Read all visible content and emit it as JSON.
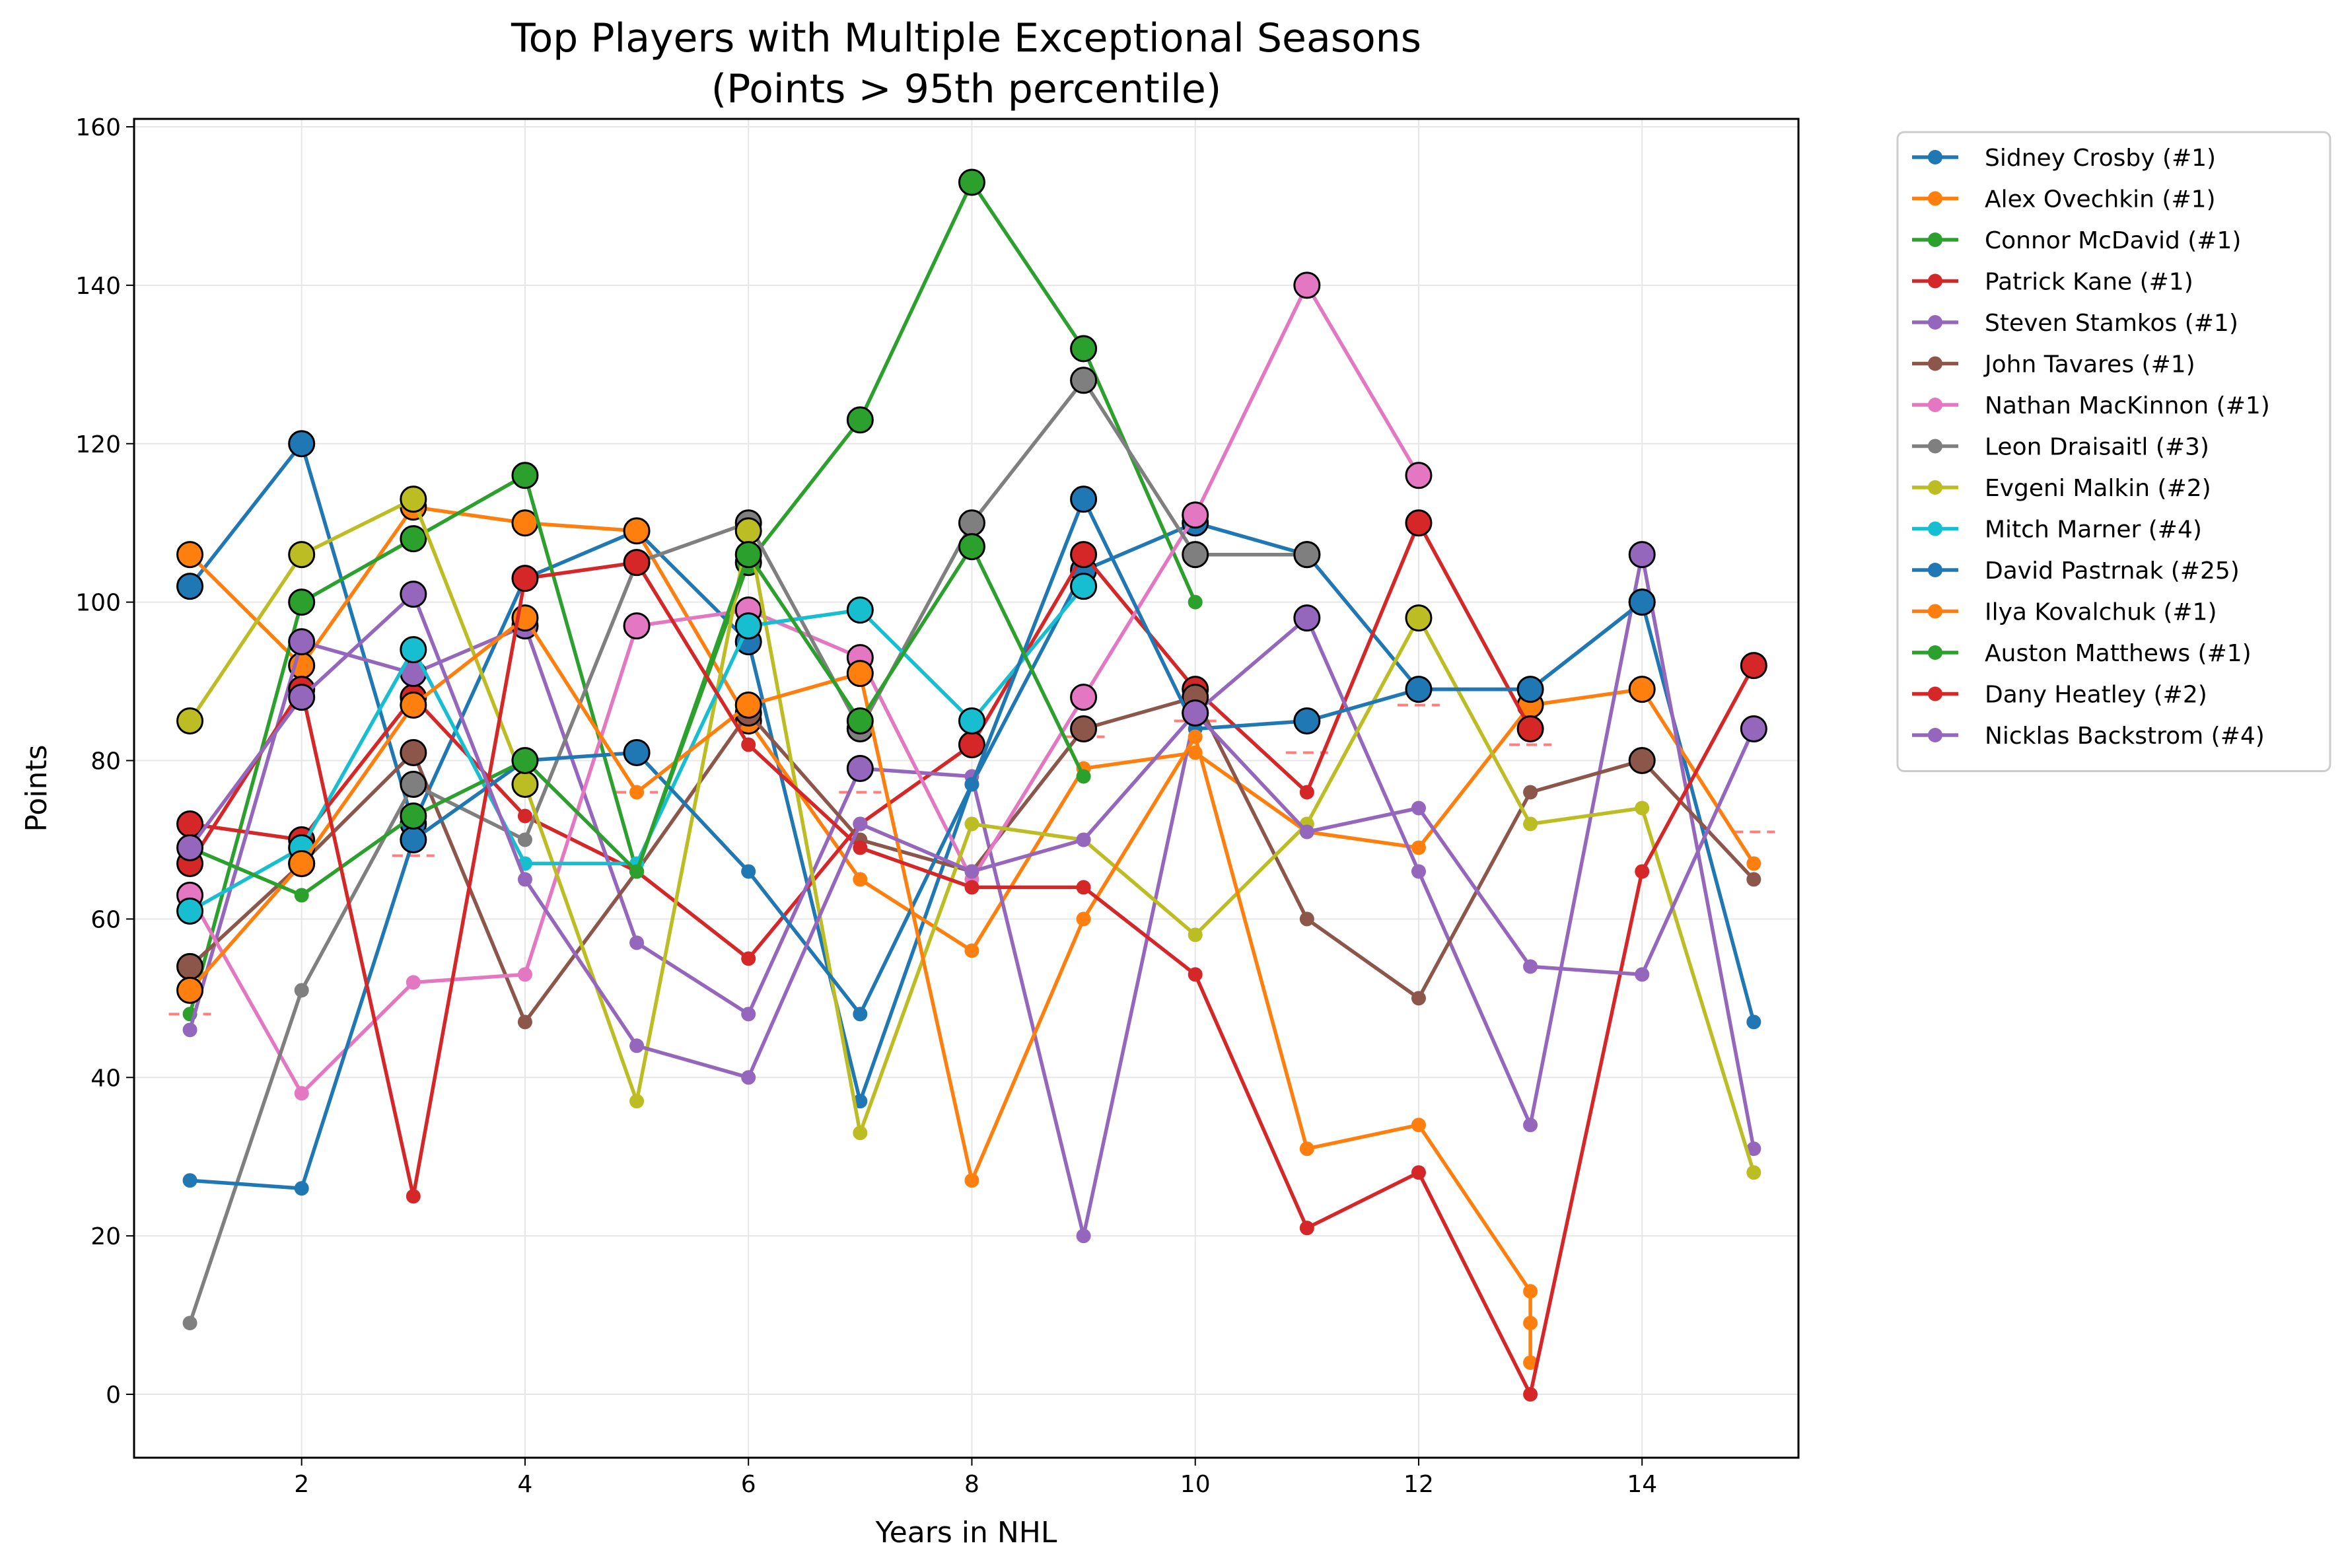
{
  "chart_data": {
    "type": "line",
    "title": "Top Players with Multiple Exceptional Seasons",
    "subtitle": "(Points > 95th percentile)",
    "xlabel": "Years in NHL",
    "ylabel": "Points",
    "xlim": [
      0.5,
      15.4
    ],
    "ylim": [
      -8,
      161
    ],
    "xticks": [
      2,
      4,
      6,
      8,
      10,
      12,
      14
    ],
    "yticks": [
      0,
      20,
      40,
      60,
      80,
      100,
      120,
      140,
      160
    ],
    "grid": true,
    "legend_position": "outside-right",
    "threshold_markers": [
      {
        "x": 1,
        "y": 48
      },
      {
        "x": 3,
        "y": 68
      },
      {
        "x": 5,
        "y": 76
      },
      {
        "x": 7,
        "y": 76
      },
      {
        "x": 9,
        "y": 83
      },
      {
        "x": 10,
        "y": 85
      },
      {
        "x": 11,
        "y": 81
      },
      {
        "x": 12,
        "y": 87
      },
      {
        "x": 13,
        "y": 82
      },
      {
        "x": 15,
        "y": 71
      }
    ],
    "series": [
      {
        "name": "Sidney Crosby (#1)",
        "color": "#1f77b4",
        "x": [
          1,
          2,
          3,
          4,
          5,
          6,
          7,
          8,
          9,
          10,
          11,
          12,
          13,
          14,
          15
        ],
        "y": [
          102,
          120,
          72,
          103,
          109,
          95,
          37,
          77,
          104,
          110,
          106,
          89,
          89,
          100,
          47
        ],
        "exceptional": [
          1,
          1,
          1,
          0,
          0,
          1,
          0,
          0,
          1,
          1,
          1,
          0,
          0,
          1,
          0
        ]
      },
      {
        "name": "Alex Ovechkin (#1)",
        "color": "#ff7f0e",
        "x": [
          1,
          2,
          3,
          4,
          5,
          6,
          7,
          8,
          9,
          10,
          11,
          12,
          13,
          14,
          15
        ],
        "y": [
          106,
          92,
          112,
          110,
          109,
          85,
          65,
          56,
          79,
          81,
          71,
          69,
          87,
          89,
          67
        ],
        "exceptional": [
          1,
          1,
          1,
          1,
          1,
          1,
          0,
          0,
          0,
          0,
          0,
          0,
          1,
          1,
          0
        ]
      },
      {
        "name": "Connor McDavid (#1)",
        "color": "#2ca02c",
        "x": [
          1,
          2,
          3,
          4,
          5,
          6,
          7,
          8,
          9,
          10
        ],
        "y": [
          48,
          100,
          108,
          116,
          66,
          105,
          123,
          153,
          132,
          100
        ],
        "exceptional": [
          0,
          1,
          1,
          1,
          0,
          1,
          1,
          1,
          1,
          0
        ]
      },
      {
        "name": "Patrick Kane (#1)",
        "color": "#d62728",
        "x": [
          1,
          2,
          3,
          4,
          5,
          6,
          7,
          8,
          9,
          10,
          11,
          12,
          13
        ],
        "y": [
          72,
          70,
          88,
          73,
          66,
          55,
          72,
          82,
          106,
          89,
          76,
          110,
          84
        ],
        "exceptional": [
          1,
          1,
          1,
          0,
          0,
          0,
          0,
          1,
          1,
          1,
          0,
          1,
          1
        ]
      },
      {
        "name": "Steven Stamkos (#1)",
        "color": "#9467bd",
        "x": [
          1,
          2,
          3,
          4,
          5,
          6,
          7,
          8,
          9,
          10,
          11,
          12,
          13,
          14,
          15
        ],
        "y": [
          46,
          95,
          91,
          97,
          57,
          48,
          79,
          78,
          20,
          86,
          98,
          66,
          34,
          106,
          31
        ],
        "exceptional": [
          0,
          1,
          1,
          1,
          0,
          0,
          1,
          0,
          0,
          1,
          1,
          0,
          0,
          1,
          0
        ]
      },
      {
        "name": "John Tavares (#1)",
        "color": "#8c564b",
        "x": [
          1,
          2,
          3,
          4,
          5,
          6,
          7,
          8,
          9,
          10,
          11,
          12,
          13,
          14,
          15
        ],
        "y": [
          54,
          67,
          81,
          47,
          66,
          86,
          70,
          66,
          84,
          88,
          60,
          50,
          76,
          80,
          65
        ],
        "exceptional": [
          1,
          1,
          1,
          0,
          0,
          1,
          0,
          0,
          1,
          1,
          0,
          0,
          0,
          1,
          0
        ]
      },
      {
        "name": "Nathan MacKinnon (#1)",
        "color": "#e377c2",
        "x": [
          1,
          2,
          3,
          4,
          5,
          6,
          7,
          8,
          9,
          10,
          11,
          12
        ],
        "y": [
          63,
          38,
          52,
          53,
          97,
          99,
          93,
          65,
          88,
          111,
          140,
          116
        ],
        "exceptional": [
          1,
          0,
          0,
          0,
          1,
          1,
          1,
          0,
          1,
          1,
          1,
          1
        ]
      },
      {
        "name": "Leon Draisaitl (#3)",
        "color": "#7f7f7f",
        "x": [
          1,
          2,
          3,
          4,
          5,
          6,
          7,
          8,
          9,
          10,
          11
        ],
        "y": [
          9,
          51,
          77,
          70,
          105,
          110,
          84,
          110,
          128,
          106,
          106
        ],
        "exceptional": [
          0,
          0,
          1,
          0,
          0,
          1,
          1,
          1,
          1,
          1,
          1
        ]
      },
      {
        "name": "Evgeni Malkin (#2)",
        "color": "#bcbd22",
        "x": [
          1,
          2,
          3,
          4,
          5,
          6,
          7,
          8,
          9,
          10,
          11,
          12,
          13,
          14,
          15
        ],
        "y": [
          85,
          106,
          113,
          77,
          37,
          109,
          33,
          72,
          70,
          58,
          72,
          98,
          72,
          74,
          28
        ],
        "exceptional": [
          1,
          1,
          1,
          1,
          0,
          1,
          0,
          0,
          0,
          0,
          0,
          1,
          0,
          0,
          0
        ]
      },
      {
        "name": "Mitch Marner (#4)",
        "color": "#17becf",
        "x": [
          1,
          2,
          3,
          4,
          5,
          6,
          7,
          8,
          9
        ],
        "y": [
          61,
          69,
          94,
          67,
          67,
          97,
          99,
          85,
          102
        ],
        "exceptional": [
          1,
          1,
          1,
          0,
          0,
          1,
          1,
          1,
          1
        ]
      },
      {
        "name": "David Pastrnak (#25)",
        "color": "#1f77b4",
        "x": [
          1,
          2,
          3,
          4,
          5,
          6,
          7,
          8,
          9,
          10,
          11,
          12,
          13,
          14
        ],
        "y": [
          27,
          26,
          70,
          80,
          81,
          66,
          48,
          77,
          113,
          84,
          85,
          89,
          89,
          100
        ],
        "exceptional": [
          0,
          0,
          1,
          0,
          1,
          0,
          0,
          0,
          1,
          0,
          1,
          1,
          1,
          1
        ]
      },
      {
        "name": "Ilya Kovalchuk (#1)",
        "color": "#ff7f0e",
        "x": [
          1,
          2,
          3,
          4,
          5,
          6,
          7,
          8,
          9,
          10,
          11,
          12,
          13,
          13,
          13
        ],
        "y": [
          51,
          67,
          87,
          98,
          76,
          87,
          91,
          27,
          60,
          83,
          31,
          34,
          13,
          9,
          4
        ],
        "exceptional": [
          1,
          1,
          1,
          1,
          0,
          1,
          1,
          0,
          0,
          0,
          0,
          0,
          0,
          0,
          0
        ]
      },
      {
        "name": "Auston Matthews (#1)",
        "color": "#2ca02c",
        "x": [
          1,
          2,
          3,
          4,
          5,
          6,
          7,
          8,
          9
        ],
        "y": [
          69,
          63,
          73,
          80,
          66,
          106,
          85,
          107,
          78
        ],
        "exceptional": [
          0,
          0,
          1,
          1,
          0,
          1,
          1,
          1,
          0
        ]
      },
      {
        "name": "Dany Heatley (#2)",
        "color": "#d62728",
        "x": [
          1,
          2,
          3,
          4,
          5,
          6,
          7,
          8,
          9,
          10,
          11,
          12,
          13,
          14,
          15
        ],
        "y": [
          67,
          89,
          25,
          103,
          105,
          82,
          69,
          64,
          64,
          53,
          21,
          28,
          0,
          66,
          92
        ],
        "exceptional": [
          1,
          1,
          0,
          1,
          1,
          0,
          0,
          0,
          0,
          0,
          0,
          0,
          0,
          0,
          1
        ]
      },
      {
        "name": "Nicklas Backstrom (#4)",
        "color": "#9467bd",
        "x": [
          1,
          2,
          3,
          4,
          5,
          6,
          7,
          8,
          9,
          10,
          11,
          12,
          13,
          14,
          15
        ],
        "y": [
          69,
          88,
          101,
          65,
          44,
          40,
          72,
          66,
          70,
          86,
          71,
          74,
          54,
          53,
          84
        ],
        "exceptional": [
          1,
          1,
          1,
          0,
          0,
          0,
          0,
          0,
          0,
          1,
          0,
          0,
          0,
          0,
          1
        ]
      }
    ]
  }
}
